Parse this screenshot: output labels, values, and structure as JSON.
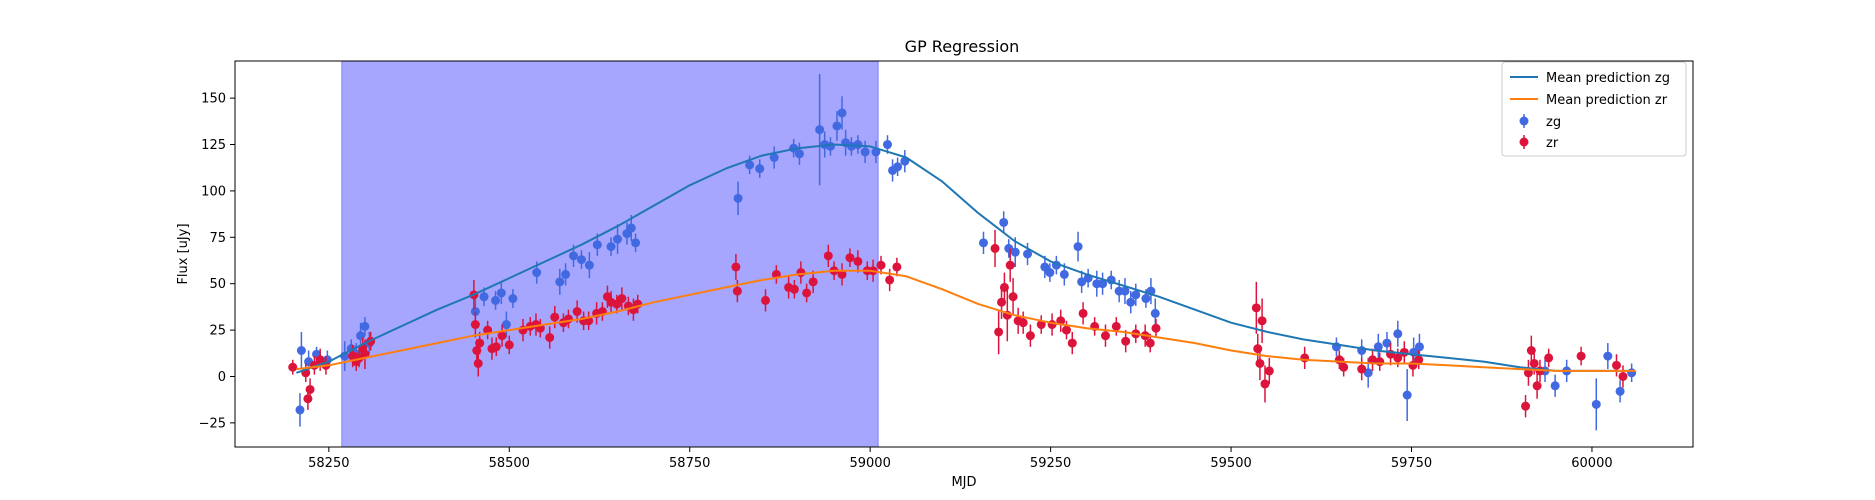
{
  "chart_data": {
    "type": "scatter",
    "title": "GP Regression",
    "xlabel": "MJD",
    "ylabel": "Flux [uJy]",
    "xlim": [
      58120,
      60140
    ],
    "ylim": [
      -38,
      170
    ],
    "x_ticks": [
      58250,
      58500,
      58750,
      59000,
      59250,
      59500,
      59750,
      60000
    ],
    "y_ticks": [
      -25,
      0,
      25,
      50,
      75,
      100,
      125,
      150
    ],
    "shaded_region": {
      "x0": 58268,
      "x1": 59011,
      "color": "#a6a6ff"
    },
    "legend_position": "top-right",
    "legend": [
      {
        "label": "Mean prediction zg",
        "kind": "line",
        "color": "#1f77b4"
      },
      {
        "label": "Mean prediction zr",
        "kind": "line",
        "color": "#ff7f0e"
      },
      {
        "label": "zg",
        "kind": "errorbar",
        "color": "#4169e1"
      },
      {
        "label": "zr",
        "kind": "errorbar",
        "color": "#dc143c"
      }
    ],
    "lines": [
      {
        "name": "Mean prediction zg",
        "color": "#1f77b4",
        "x": [
          58205,
          58250,
          58300,
          58350,
          58400,
          58450,
          58500,
          58550,
          58600,
          58650,
          58700,
          58750,
          58800,
          58850,
          58900,
          58950,
          59000,
          59050,
          59100,
          59150,
          59200,
          59250,
          59300,
          59350,
          59400,
          59450,
          59500,
          59550,
          59600,
          59650,
          59700,
          59750,
          59800,
          59850,
          59900,
          59950,
          60000,
          60060
        ],
        "y": [
          2,
          8,
          18,
          27,
          36,
          44,
          53,
          62,
          71,
          81,
          92,
          103,
          112,
          119,
          123,
          125,
          124,
          118,
          105,
          88,
          73,
          62,
          55,
          49,
          43,
          36,
          29,
          24,
          20,
          17,
          14,
          12,
          10,
          8,
          5,
          3,
          3,
          3
        ]
      },
      {
        "name": "Mean prediction zr",
        "color": "#ff7f0e",
        "x": [
          58205,
          58250,
          58300,
          58350,
          58400,
          58450,
          58500,
          58550,
          58600,
          58650,
          58700,
          58750,
          58800,
          58850,
          58900,
          58950,
          59000,
          59050,
          59100,
          59150,
          59200,
          59250,
          59300,
          59350,
          59400,
          59450,
          59500,
          59550,
          59600,
          59650,
          59700,
          59750,
          59800,
          59850,
          59900,
          59950,
          60000,
          60060
        ],
        "y": [
          4,
          6,
          10,
          14,
          18,
          22,
          25,
          28,
          31,
          35,
          40,
          44,
          48,
          52,
          55,
          57,
          57,
          54,
          47,
          39,
          33,
          29,
          26,
          24,
          21,
          18,
          14,
          11,
          9,
          8,
          7,
          7,
          6,
          5,
          4,
          3,
          3,
          3
        ]
      }
    ],
    "series": [
      {
        "name": "zg",
        "color": "#4169e1",
        "x": [
          58210,
          58212,
          58222,
          58233,
          58248,
          58272,
          58281,
          58288,
          58294,
          58300,
          58306,
          58453,
          58465,
          58481,
          58489,
          58496,
          58505,
          58538,
          58570,
          58578,
          58589,
          58600,
          58611,
          58622,
          58641,
          58650,
          58663,
          58669,
          58675,
          58817,
          58833,
          58847,
          58867,
          58894,
          58902,
          58930,
          58937,
          58945,
          58954,
          58961,
          58966,
          58974,
          58983,
          58993,
          59008,
          59024,
          59031,
          59038,
          59048,
          59157,
          59185,
          59192,
          59201,
          59218,
          59242,
          59249,
          59258,
          59269,
          59288,
          59293,
          59302,
          59314,
          59322,
          59334,
          59345,
          59353,
          59361,
          59368,
          59382,
          59389,
          59395,
          59646,
          59681,
          59690,
          59704,
          59716,
          59731,
          59744,
          59753,
          59761,
          59935,
          59949,
          59965,
          60006,
          60022,
          60039,
          60055
        ],
        "y": [
          -18,
          14,
          8,
          12,
          9,
          11,
          15,
          12,
          22,
          27,
          18,
          35,
          43,
          41,
          45,
          28,
          42,
          56,
          51,
          55,
          65,
          63,
          60,
          71,
          70,
          74,
          77,
          80,
          72,
          96,
          114,
          112,
          118,
          123,
          120,
          133,
          125,
          124,
          135,
          142,
          126,
          124,
          125,
          121,
          121,
          125,
          111,
          113,
          116,
          72,
          83,
          69,
          67,
          66,
          59,
          56,
          60,
          55,
          70,
          51,
          53,
          50,
          50,
          52,
          46,
          46,
          40,
          44,
          42,
          46,
          34,
          16,
          14,
          2,
          16,
          18,
          23,
          -10,
          13,
          16,
          3,
          -5,
          3,
          -15,
          11,
          -8,
          2
        ],
        "err": [
          9,
          10,
          6,
          4,
          5,
          8,
          5,
          6,
          7,
          5,
          6,
          8,
          5,
          5,
          6,
          7,
          5,
          6,
          7,
          6,
          6,
          5,
          7,
          6,
          5,
          8,
          6,
          7,
          5,
          9,
          5,
          5,
          6,
          5,
          6,
          30,
          7,
          5,
          8,
          9,
          7,
          5,
          5,
          6,
          6,
          5,
          6,
          5,
          6,
          6,
          6,
          5,
          8,
          6,
          6,
          5,
          5,
          6,
          8,
          6,
          5,
          7,
          6,
          5,
          6,
          7,
          6,
          6,
          5,
          7,
          8,
          5,
          6,
          8,
          7,
          6,
          7,
          14,
          8,
          7,
          6,
          6,
          6,
          14,
          7,
          6,
          5
        ]
      },
      {
        "name": "zr",
        "color": "#dc143c",
        "x": [
          58200,
          58218,
          58221,
          58224,
          58230,
          58238,
          58246,
          58283,
          58288,
          58292,
          58297,
          58300,
          58308,
          58451,
          58453,
          58455,
          58457,
          58459,
          58470,
          58476,
          58482,
          58490,
          58500,
          58519,
          58529,
          58537,
          58543,
          58556,
          58563,
          58575,
          58582,
          58594,
          58603,
          58610,
          58621,
          58629,
          58636,
          58641,
          58649,
          58656,
          58665,
          58672,
          58678,
          58814,
          58816,
          58855,
          58870,
          58887,
          58895,
          58904,
          58912,
          58921,
          58942,
          58950,
          58961,
          58972,
          58983,
          58996,
          59004,
          59015,
          59027,
          59037,
          59173,
          59178,
          59182,
          59186,
          59190,
          59194,
          59198,
          59205,
          59212,
          59222,
          59237,
          59252,
          59264,
          59272,
          59280,
          59295,
          59311,
          59326,
          59341,
          59354,
          59368,
          59381,
          59388,
          59396,
          59535,
          59537,
          59540,
          59543,
          59547,
          59553,
          59602,
          59650,
          59656,
          59681,
          59696,
          59706,
          59721,
          59731,
          59740,
          59752,
          59760,
          59908,
          59912,
          59916,
          59920,
          59924,
          59928,
          59940,
          59985,
          60034,
          60043
        ],
        "y": [
          5,
          2,
          -12,
          -7,
          6,
          9,
          6,
          11,
          8,
          10,
          15,
          12,
          19,
          44,
          28,
          14,
          7,
          18,
          25,
          15,
          16,
          22,
          17,
          25,
          27,
          28,
          26,
          21,
          32,
          29,
          31,
          35,
          30,
          30,
          34,
          35,
          43,
          40,
          39,
          42,
          38,
          36,
          39,
          59,
          46,
          41,
          55,
          48,
          47,
          56,
          45,
          51,
          65,
          57,
          55,
          64,
          62,
          57,
          57,
          60,
          52,
          59,
          69,
          24,
          40,
          48,
          33,
          60,
          43,
          30,
          29,
          22,
          28,
          28,
          30,
          25,
          18,
          34,
          27,
          22,
          27,
          19,
          23,
          22,
          18,
          26,
          37,
          15,
          7,
          30,
          -4,
          3,
          10,
          9,
          5,
          4,
          9,
          8,
          12,
          10,
          13,
          6,
          9,
          -16,
          2,
          14,
          7,
          -5,
          3,
          10,
          11,
          6,
          0
        ],
        "err": [
          4,
          5,
          6,
          6,
          5,
          6,
          5,
          6,
          5,
          5,
          6,
          8,
          5,
          8,
          7,
          6,
          7,
          6,
          5,
          6,
          5,
          6,
          5,
          6,
          5,
          6,
          5,
          6,
          6,
          5,
          5,
          6,
          5,
          5,
          6,
          5,
          6,
          6,
          5,
          6,
          5,
          6,
          5,
          7,
          6,
          6,
          5,
          6,
          5,
          6,
          5,
          6,
          6,
          5,
          6,
          5,
          6,
          5,
          6,
          5,
          6,
          5,
          10,
          12,
          9,
          8,
          14,
          9,
          10,
          7,
          6,
          6,
          5,
          6,
          6,
          5,
          6,
          6,
          5,
          6,
          5,
          6,
          5,
          6,
          5,
          5,
          14,
          8,
          9,
          12,
          10,
          7,
          6,
          5,
          5,
          6,
          6,
          5,
          6,
          5,
          6,
          6,
          5,
          6,
          7,
          8,
          6,
          7,
          6,
          5,
          5,
          6,
          6
        ]
      }
    ]
  }
}
